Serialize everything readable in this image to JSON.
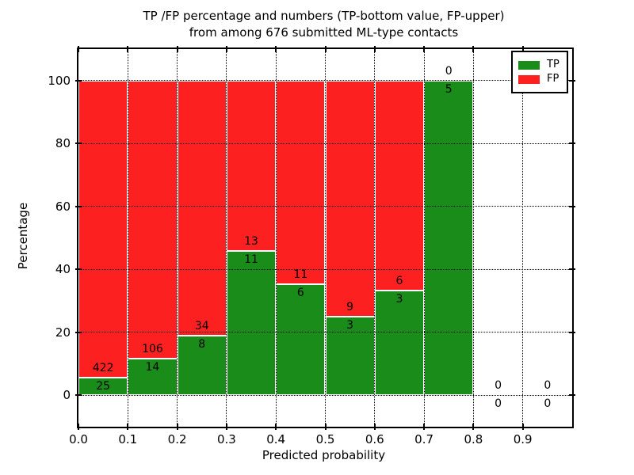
{
  "title": {
    "line1": "TP /FP percentage and numbers (TP-bottom value, FP-upper)",
    "line2": "from among 676 submitted ML-type contacts"
  },
  "legend": {
    "position": "upper right",
    "items": [
      {
        "label": "TP",
        "color": "#1a8c1a"
      },
      {
        "label": "FP",
        "color": "#fd2020"
      }
    ]
  },
  "chart_data": {
    "type": "bar",
    "stacked": true,
    "title": "TP /FP percentage and numbers (TP-bottom value, FP-upper) from among 676 submitted ML-type contacts",
    "xlabel": "Predicted probability",
    "ylabel": "Percentage",
    "xlim": [
      0.0,
      1.0
    ],
    "ylim": [
      -10,
      110
    ],
    "x_ticks": [
      "0.0",
      "0.1",
      "0.2",
      "0.3",
      "0.4",
      "0.5",
      "0.6",
      "0.7",
      "0.8",
      "0.9"
    ],
    "y_ticks": [
      "0",
      "20",
      "40",
      "60",
      "80",
      "100"
    ],
    "grid": true,
    "total_contacts": 676,
    "tp_color": "#1a8c1a",
    "fp_color": "#fd2020",
    "bins": [
      {
        "x_start": 0.0,
        "x_end": 0.1,
        "tp": 25,
        "fp": 422,
        "tp_pct": 5.6
      },
      {
        "x_start": 0.1,
        "x_end": 0.2,
        "tp": 14,
        "fp": 106,
        "tp_pct": 11.7
      },
      {
        "x_start": 0.2,
        "x_end": 0.3,
        "tp": 8,
        "fp": 34,
        "tp_pct": 19.0
      },
      {
        "x_start": 0.3,
        "x_end": 0.4,
        "tp": 11,
        "fp": 13,
        "tp_pct": 45.8
      },
      {
        "x_start": 0.4,
        "x_end": 0.5,
        "tp": 6,
        "fp": 11,
        "tp_pct": 35.3
      },
      {
        "x_start": 0.5,
        "x_end": 0.6,
        "tp": 3,
        "fp": 9,
        "tp_pct": 25.0
      },
      {
        "x_start": 0.6,
        "x_end": 0.7,
        "tp": 3,
        "fp": 6,
        "tp_pct": 33.3
      },
      {
        "x_start": 0.7,
        "x_end": 0.8,
        "tp": 5,
        "fp": 0,
        "tp_pct": 100.0
      },
      {
        "x_start": 0.8,
        "x_end": 0.9,
        "tp": 0,
        "fp": 0,
        "tp_pct": 0
      },
      {
        "x_start": 0.9,
        "x_end": 1.0,
        "tp": 0,
        "fp": 0,
        "tp_pct": 0
      }
    ],
    "series": [
      {
        "name": "TP",
        "color": "#1a8c1a",
        "values": [
          25,
          14,
          8,
          11,
          6,
          3,
          3,
          5,
          0,
          0
        ]
      },
      {
        "name": "FP",
        "color": "#fd2020",
        "values": [
          422,
          106,
          34,
          13,
          11,
          9,
          6,
          0,
          0,
          0
        ]
      }
    ]
  }
}
